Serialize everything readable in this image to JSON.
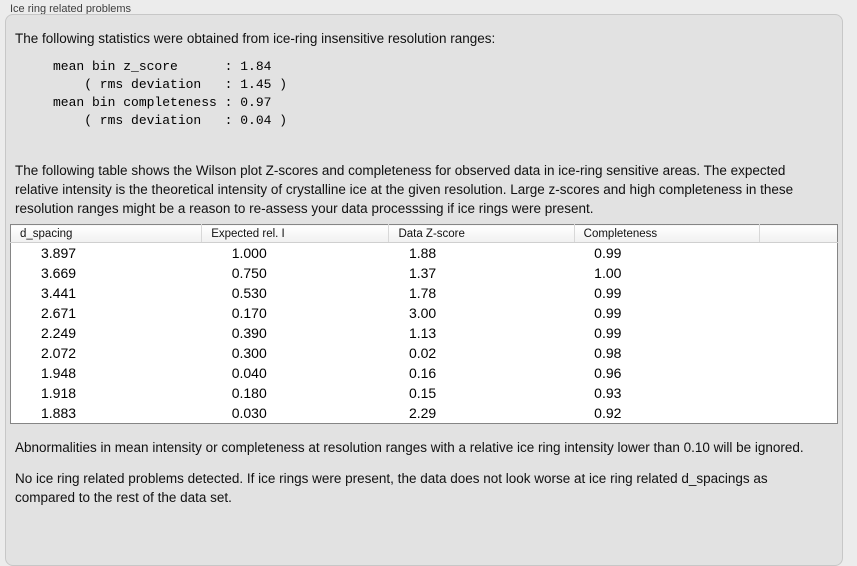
{
  "window": {
    "label": "Ice ring related problems"
  },
  "panel": {
    "intro": "The following statistics were obtained from ice-ring insensitive resolution ranges:",
    "stats_block": "mean bin z_score      : 1.84\n    ( rms deviation   : 1.45 )\nmean bin completeness : 0.97\n    ( rms deviation   : 0.04 )",
    "stats_values": {
      "mean_bin_z_score": "1.84",
      "z_score_rms_deviation": "1.45",
      "mean_bin_completeness": "0.97",
      "completeness_rms_deviation": "0.04"
    },
    "description": "The following table shows the Wilson plot Z-scores and completeness for observed data in ice-ring sensitive areas. The expected relative intensity is the theoretical intensity of crystalline ice at the given resolution. Large z-scores and high completeness in these resolution ranges might be a reason to re-assess your data processsing if ice rings were present.",
    "ignore_note": "Abnormalities in mean intensity or completeness at resolution ranges with a relative ice ring intensity lower than 0.10 will be ignored.",
    "conclusion": "No ice ring related problems detected. If ice rings were present, the data does not look worse at ice ring related d_spacings as compared to the rest of the data set."
  },
  "table": {
    "headers": [
      "d_spacing",
      "Expected rel. I",
      "Data Z-score",
      "Completeness"
    ],
    "rows": [
      [
        "3.897",
        "1.000",
        "1.88",
        "0.99"
      ],
      [
        "3.669",
        "0.750",
        "1.37",
        "1.00"
      ],
      [
        "3.441",
        "0.530",
        "1.78",
        "0.99"
      ],
      [
        "2.671",
        "0.170",
        "3.00",
        "0.99"
      ],
      [
        "2.249",
        "0.390",
        "1.13",
        "0.99"
      ],
      [
        "2.072",
        "0.300",
        "0.02",
        "0.98"
      ],
      [
        "1.948",
        "0.040",
        "0.16",
        "0.96"
      ],
      [
        "1.918",
        "0.180",
        "0.15",
        "0.93"
      ],
      [
        "1.883",
        "0.030",
        "2.29",
        "0.92"
      ]
    ]
  },
  "colors": {
    "outer_background": "#ececec",
    "panel_background": "#e2e2e2",
    "panel_border": "#c7c7c7",
    "table_background": "#ffffff",
    "table_border": "#858585",
    "text": "#101010"
  }
}
